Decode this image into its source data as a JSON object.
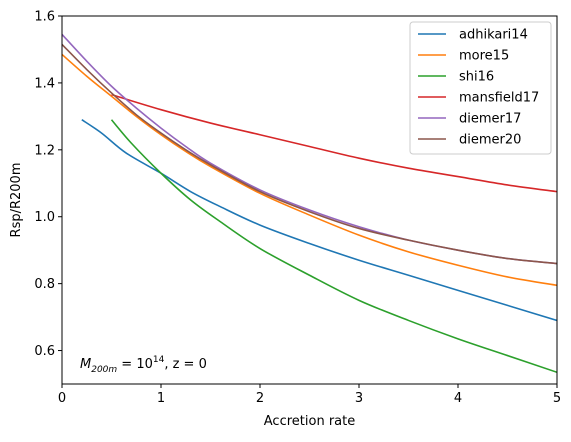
{
  "chart_data": {
    "type": "line",
    "xlabel": "Accretion rate",
    "ylabel": "Rsp/R200m",
    "xlim": [
      0,
      5
    ],
    "ylim": [
      0.5,
      1.6
    ],
    "xticks": [
      0,
      1,
      2,
      3,
      4,
      5
    ],
    "xtick_labels": [
      "0",
      "1",
      "2",
      "3",
      "4",
      "5"
    ],
    "yticks": [
      0.6,
      0.8,
      1.0,
      1.2,
      1.4,
      1.6
    ],
    "ytick_labels": [
      "0.6",
      "0.8",
      "1.0",
      "1.2",
      "1.4",
      "1.6"
    ],
    "grid": false,
    "legend_position": "top-right",
    "annotation": {
      "mass_symbol": "M",
      "mass_subscript": "200m",
      "equals": " = 10",
      "exponent": "14",
      "redshift": ", z = 0"
    },
    "series": [
      {
        "name": "adhikari14",
        "color": "#1f77b4",
        "x": [
          0.2,
          0.4,
          0.65,
          1.0,
          1.3,
          1.6,
          2.0,
          2.5,
          3.0,
          3.5,
          4.0,
          4.5,
          5.0
        ],
        "y": [
          1.29,
          1.25,
          1.19,
          1.13,
          1.075,
          1.03,
          0.975,
          0.92,
          0.87,
          0.825,
          0.78,
          0.735,
          0.69
        ]
      },
      {
        "name": "more15",
        "color": "#ff7f0e",
        "x": [
          0.0,
          0.25,
          0.5,
          0.75,
          1.0,
          1.25,
          1.5,
          2.0,
          2.5,
          3.0,
          3.5,
          4.0,
          4.5,
          5.0
        ],
        "y": [
          1.485,
          1.42,
          1.36,
          1.3,
          1.245,
          1.195,
          1.15,
          1.07,
          1.005,
          0.945,
          0.895,
          0.855,
          0.82,
          0.795
        ]
      },
      {
        "name": "shi16",
        "color": "#2ca02c",
        "x": [
          0.5,
          0.7,
          1.0,
          1.3,
          1.6,
          2.0,
          2.5,
          3.0,
          3.5,
          4.0,
          4.5,
          5.0
        ],
        "y": [
          1.29,
          1.22,
          1.13,
          1.05,
          0.985,
          0.905,
          0.825,
          0.75,
          0.69,
          0.635,
          0.585,
          0.535
        ]
      },
      {
        "name": "mansfield17",
        "color": "#d62728",
        "x": [
          0.5,
          1.0,
          1.5,
          2.0,
          2.5,
          3.0,
          3.5,
          4.0,
          4.5,
          5.0
        ],
        "y": [
          1.365,
          1.32,
          1.28,
          1.245,
          1.21,
          1.175,
          1.145,
          1.12,
          1.095,
          1.075
        ]
      },
      {
        "name": "diemer17",
        "color": "#9467bd",
        "x": [
          0.0,
          0.25,
          0.5,
          0.75,
          1.0,
          1.25,
          1.5,
          2.0,
          2.5,
          3.0,
          3.5,
          4.0,
          4.5,
          5.0
        ],
        "y": [
          1.545,
          1.465,
          1.39,
          1.325,
          1.265,
          1.21,
          1.16,
          1.08,
          1.02,
          0.97,
          0.93,
          0.9,
          0.875,
          0.86
        ]
      },
      {
        "name": "diemer20",
        "color": "#8c564b",
        "x": [
          0.0,
          0.25,
          0.5,
          0.75,
          1.0,
          1.25,
          1.5,
          2.0,
          2.5,
          3.0,
          3.5,
          4.0,
          4.5,
          5.0
        ],
        "y": [
          1.515,
          1.44,
          1.37,
          1.305,
          1.25,
          1.2,
          1.155,
          1.075,
          1.015,
          0.965,
          0.93,
          0.9,
          0.875,
          0.86
        ]
      }
    ]
  }
}
